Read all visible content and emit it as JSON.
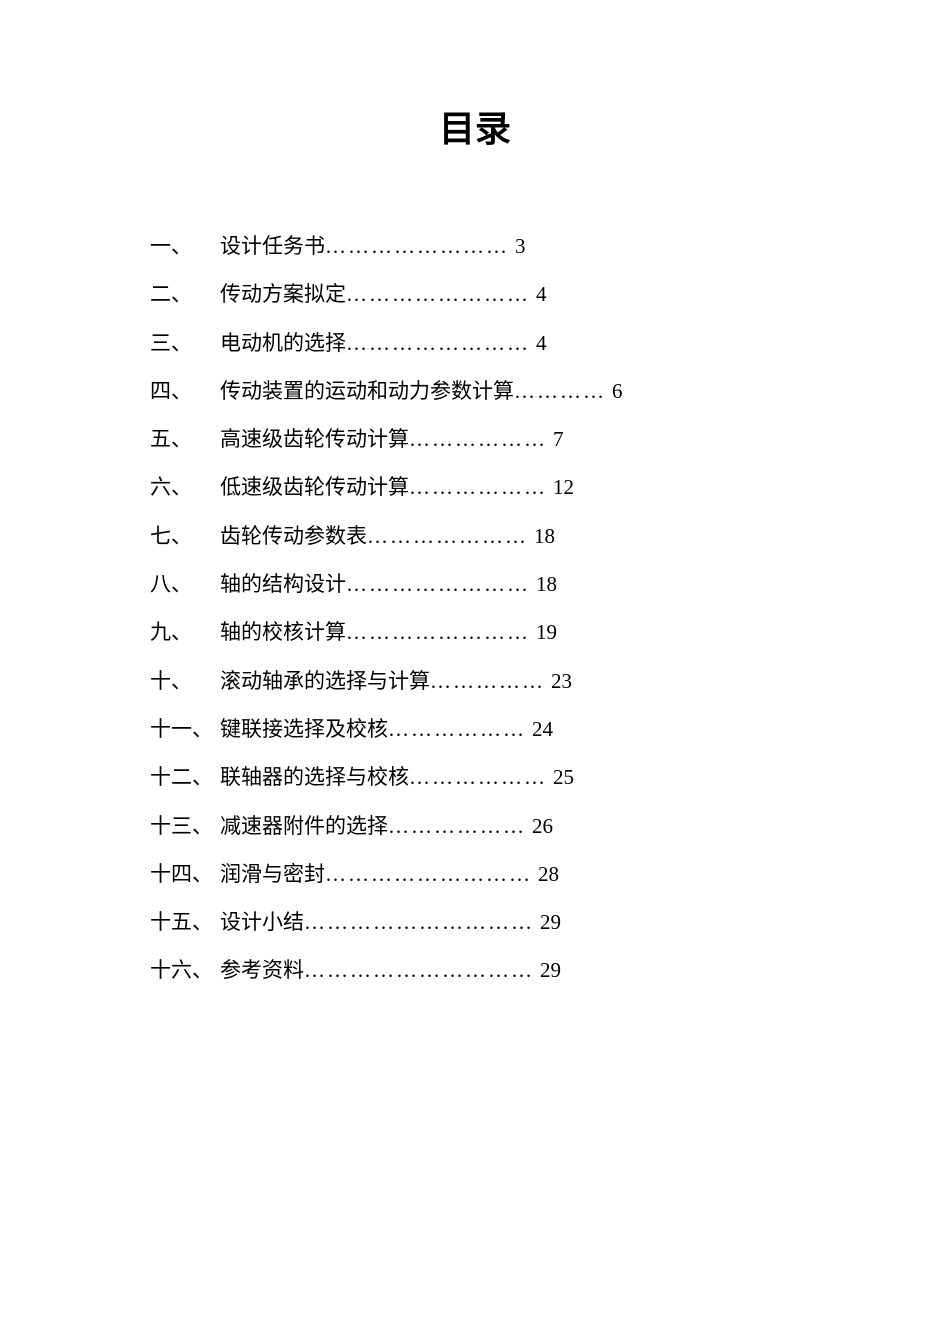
{
  "title": "目录",
  "toc": {
    "items": [
      {
        "num": "一、",
        "text": "设计任务书",
        "dots": "……………………",
        "page": "3"
      },
      {
        "num": "二、",
        "text": "传动方案拟定",
        "dots": "……………………",
        "page": "4"
      },
      {
        "num": "三、",
        "text": "电动机的选择",
        "dots": "……………………",
        "page": "4"
      },
      {
        "num": "四、",
        "text": "传动装置的运动和动力参数计算",
        "dots": "…………",
        "page": "6"
      },
      {
        "num": "五、",
        "text": "高速级齿轮传动计算",
        "dots": "………………",
        "page": "7"
      },
      {
        "num": "六、",
        "text": "低速级齿轮传动计算",
        "dots": "………………",
        "page": "12"
      },
      {
        "num": "七、",
        "text": "齿轮传动参数表",
        "dots": "…………………",
        "page": "18"
      },
      {
        "num": "八、",
        "text": "轴的结构设计",
        "dots": "……………………",
        "page": "18"
      },
      {
        "num": "九、",
        "text": "轴的校核计算",
        "dots": "……………………",
        "page": "19"
      },
      {
        "num": "十、",
        "text": "滚动轴承的选择与计算",
        "dots": "……………",
        "page": "23"
      },
      {
        "num": "十一、",
        "text": "键联接选择及校核",
        "dots": "………………",
        "page": "24"
      },
      {
        "num": "十二、",
        "text": "联轴器的选择与校核",
        "dots": "………………",
        "page": "25"
      },
      {
        "num": "十三、",
        "text": "减速器附件的选择",
        "dots": "………………",
        "page": "26"
      },
      {
        "num": "十四、",
        "text": "润滑与密封",
        "dots": "………………………",
        "page": "28"
      },
      {
        "num": "十五、",
        "text": "设计小结",
        "dots": "…………………………",
        "page": "29"
      },
      {
        "num": "十六、",
        "text": "参考资料",
        "dots": "…………………………",
        "page": "29"
      }
    ]
  },
  "colors": {
    "background": "#ffffff",
    "text": "#000000"
  },
  "typography": {
    "title_fontsize": 36,
    "title_weight": "bold",
    "item_fontsize": 21,
    "line_height": 2.3
  }
}
